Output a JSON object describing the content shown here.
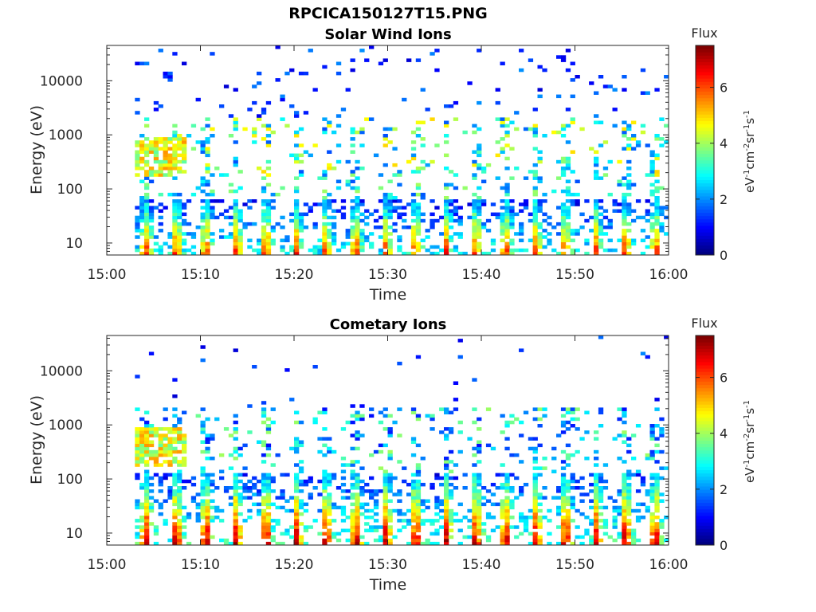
{
  "figure": {
    "filename": "RPCICA150127T15.PNG"
  },
  "chart_data": [
    {
      "type": "heatmap",
      "title": "Solar Wind Ions",
      "xlabel": "Time",
      "ylabel": "Energy (eV)",
      "x_ticks": [
        "15:00",
        "15:10",
        "15:20",
        "15:30",
        "15:40",
        "15:50",
        "16:00"
      ],
      "xlim": [
        "15:00",
        "16:00"
      ],
      "y_scale": "log",
      "y_ticks": [
        "10",
        "100",
        "1000",
        "10000"
      ],
      "ylim": [
        6,
        45000
      ],
      "colorbar": {
        "label": "Flux",
        "units": "eV⁻¹cm⁻²sr⁻¹s⁻¹",
        "range": [
          0,
          7.5
        ],
        "ticks": [
          "0",
          "2",
          "4",
          "6"
        ],
        "colormap": "jet"
      },
      "pattern": {
        "low_band_eV": [
          6,
          60
        ],
        "low_band_peak_flux": 6.3,
        "mid_band_eV": [
          150,
          2000
        ],
        "mid_band_flux": [
          1.5,
          5.0
        ],
        "burst_period_min": 3.2
      }
    },
    {
      "type": "heatmap",
      "title": "Cometary Ions",
      "xlabel": "Time",
      "ylabel": "Energy (eV)",
      "x_ticks": [
        "15:00",
        "15:10",
        "15:20",
        "15:30",
        "15:40",
        "15:50",
        "16:00"
      ],
      "xlim": [
        "15:00",
        "16:00"
      ],
      "y_scale": "log",
      "y_ticks": [
        "10",
        "100",
        "1000",
        "10000"
      ],
      "ylim": [
        6,
        45000
      ],
      "colorbar": {
        "label": "Flux",
        "units": "eV⁻¹cm⁻²sr⁻¹s⁻¹",
        "range": [
          0,
          7.5
        ],
        "ticks": [
          "0",
          "2",
          "4",
          "6"
        ],
        "colormap": "jet"
      },
      "pattern": {
        "low_band_eV": [
          6,
          120
        ],
        "low_band_peak_flux": 7.2,
        "mid_band_eV": [
          150,
          2000
        ],
        "mid_band_flux": [
          1.0,
          4.0
        ],
        "burst_period_min": 3.2
      }
    }
  ]
}
